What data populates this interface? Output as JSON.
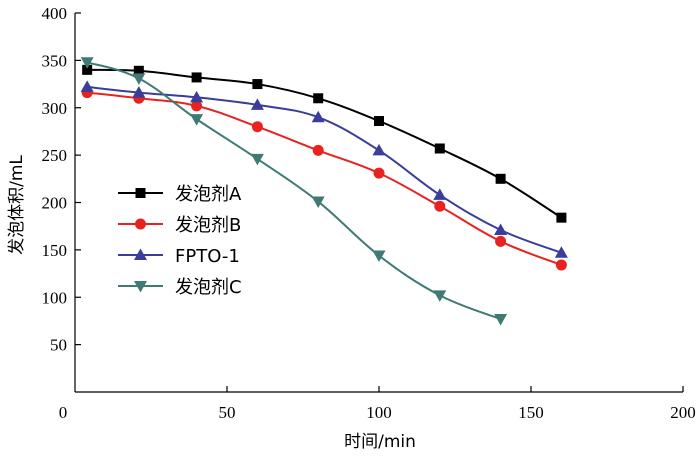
{
  "chart_data": {
    "type": "line",
    "title": "",
    "xlabel": "时间/min",
    "ylabel": "发泡体积/mL",
    "xlim": [
      0,
      200
    ],
    "ylim": [
      0,
      400
    ],
    "xticks": [
      0,
      50,
      100,
      150,
      200
    ],
    "yticks": [
      50,
      100,
      150,
      200,
      250,
      300,
      350,
      400
    ],
    "grid": false,
    "legend_position": "left",
    "series": [
      {
        "name": "发泡剂A",
        "color": "#000000",
        "marker": "square",
        "x": [
          4,
          21,
          40,
          60,
          80,
          100,
          120,
          140,
          160
        ],
        "y": [
          340,
          339,
          332,
          325,
          310,
          286,
          257,
          225,
          184
        ]
      },
      {
        "name": "发泡剂B",
        "color": "#e8231f",
        "marker": "circle",
        "x": [
          4,
          21,
          40,
          60,
          80,
          100,
          120,
          140,
          160
        ],
        "y": [
          316,
          310,
          302,
          280,
          255,
          231,
          196,
          159,
          134
        ]
      },
      {
        "name": "FPTO-1",
        "color": "#3a3d9a",
        "marker": "triangle-up",
        "x": [
          4,
          21,
          40,
          60,
          80,
          100,
          120,
          140,
          160
        ],
        "y": [
          322,
          316,
          311,
          303,
          290,
          255,
          208,
          171,
          147
        ]
      },
      {
        "name": "发泡剂C",
        "color": "#3f7a74",
        "marker": "triangle-down",
        "x": [
          4,
          21,
          40,
          60,
          80,
          100,
          120,
          140
        ],
        "y": [
          348,
          331,
          288,
          246,
          201,
          144,
          102,
          77
        ]
      }
    ]
  }
}
